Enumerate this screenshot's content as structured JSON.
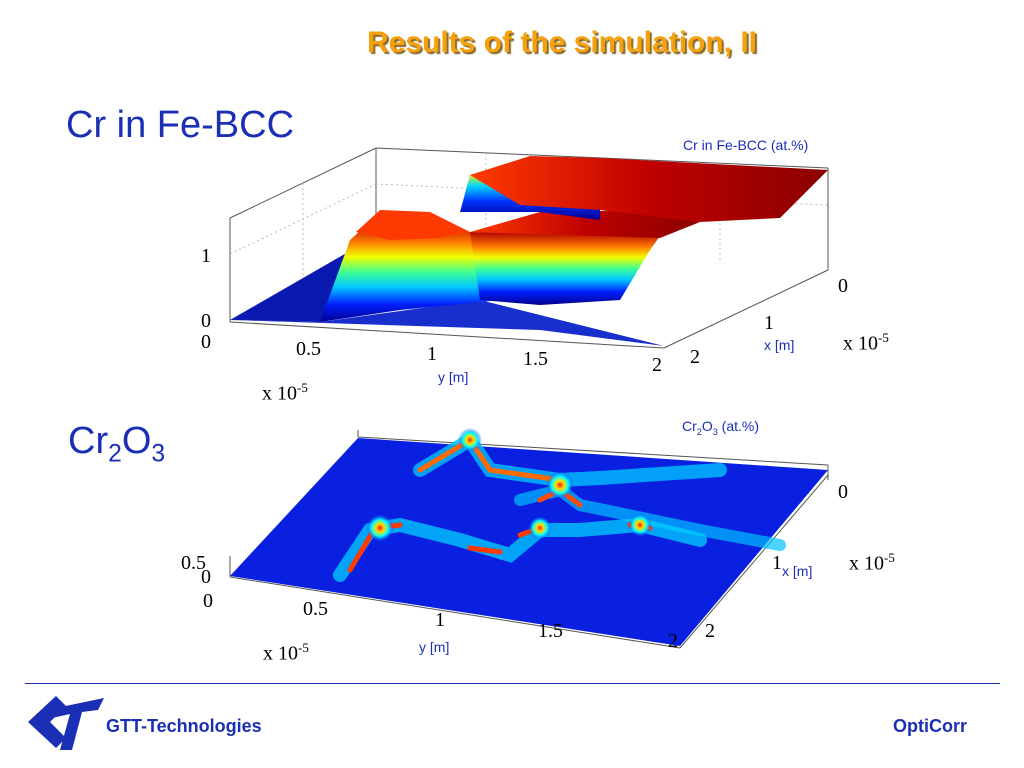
{
  "slide": {
    "title": "Results of the simulation, II",
    "footer_brand": "GTT-Technologies",
    "footer_product": "OptiCorr",
    "accent_title": "#f5a10d",
    "accent_text": "#1a2fb5"
  },
  "chart_data": [
    {
      "type": "surface",
      "panel_label": "Cr in Fe-BCC",
      "title": "Cr in Fe-BCC (at.%)",
      "xlabel": "y [m]",
      "ylabel": "x [m]",
      "x_exponent_base": "x 10",
      "x_exponent_power": "-5",
      "y_exponent_base": "x 10",
      "y_exponent_power": "-5",
      "x_ticks": [
        "0",
        "0.5",
        "1",
        "1.5",
        "2"
      ],
      "y_ticks": [
        "0",
        "1",
        "2"
      ],
      "z_ticks": [
        "0",
        "1"
      ],
      "xlim": [
        0,
        2
      ],
      "ylim": [
        0,
        2
      ],
      "zlim": [
        0,
        1.5
      ],
      "colormap": "jet"
    },
    {
      "type": "surface",
      "panel_label_main": "Cr",
      "panel_label_sub1": "2",
      "panel_label_mid": "O",
      "panel_label_sub2": "3",
      "title_main": "Cr",
      "title_sub1": "2",
      "title_mid": "O",
      "title_sub2": "3",
      "title_suffix": " (at.%)",
      "xlabel": "y [m]",
      "ylabel": "x [m]",
      "x_exponent_base": "x 10",
      "x_exponent_power": "-5",
      "y_exponent_base": "x 10",
      "y_exponent_power": "-5",
      "x_ticks": [
        "0",
        "0.5",
        "1",
        "1.5",
        "2"
      ],
      "y_ticks": [
        "0",
        "1",
        "2"
      ],
      "z_ticks": [
        "0",
        "0.5"
      ],
      "xlim": [
        0,
        2
      ],
      "ylim": [
        0,
        2
      ],
      "zlim": [
        0,
        0.5
      ],
      "colormap": "jet"
    }
  ]
}
